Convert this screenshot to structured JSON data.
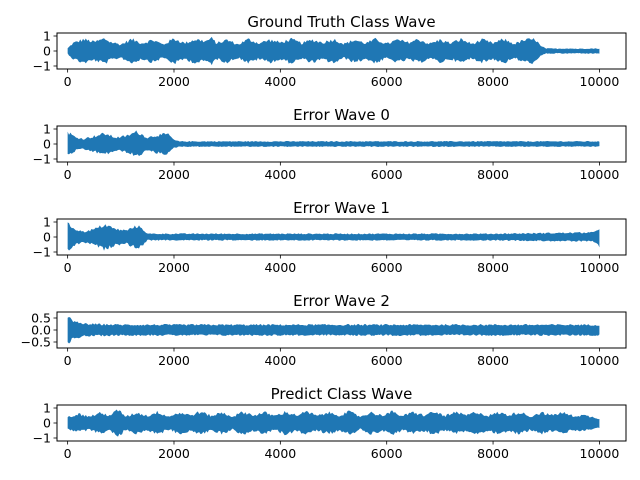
{
  "chart_data": [
    {
      "type": "line",
      "title": "Ground Truth Class Wave",
      "xlim": [
        -200,
        10500
      ],
      "ylim": [
        -1.2,
        1.2
      ],
      "xticks": [
        0,
        2000,
        4000,
        6000,
        8000,
        10000
      ],
      "yticks": [
        1,
        0,
        -1
      ],
      "ytick_labels": [
        "1",
        "0",
        "−1"
      ],
      "color": "#1f77b4",
      "envelope": {
        "x": [
          0,
          100,
          300,
          500,
          700,
          800,
          1000,
          1200,
          1400,
          1600,
          1800,
          2000,
          2200,
          2400,
          2600,
          2700,
          2800,
          3000,
          3200,
          3400,
          3600,
          3800,
          4000,
          4200,
          4400,
          4600,
          4800,
          5000,
          5200,
          5400,
          5600,
          5800,
          6000,
          6200,
          6400,
          6600,
          6800,
          7000,
          7200,
          7400,
          7600,
          7800,
          8000,
          8200,
          8400,
          8600,
          8800,
          8900,
          9000,
          9200,
          9400,
          9600,
          9800,
          10000
        ],
        "amp": [
          0.2,
          0.6,
          0.9,
          0.7,
          0.95,
          0.7,
          0.5,
          0.9,
          0.6,
          0.85,
          0.5,
          0.95,
          0.6,
          0.9,
          0.75,
          1.0,
          0.6,
          0.85,
          0.5,
          0.9,
          0.6,
          0.85,
          0.65,
          0.9,
          0.6,
          0.85,
          0.65,
          0.9,
          0.55,
          0.85,
          0.6,
          0.9,
          0.55,
          0.85,
          0.65,
          0.9,
          0.55,
          0.85,
          0.6,
          0.9,
          0.55,
          0.85,
          0.6,
          0.9,
          0.55,
          0.85,
          0.9,
          0.35,
          0.2,
          0.18,
          0.2,
          0.17,
          0.2,
          0.18
        ]
      }
    },
    {
      "type": "line",
      "title": "Error Wave 0",
      "xlim": [
        -200,
        10500
      ],
      "ylim": [
        -1.2,
        1.2
      ],
      "xticks": [
        0,
        2000,
        4000,
        6000,
        8000,
        10000
      ],
      "yticks": [
        1,
        0,
        -1
      ],
      "ytick_labels": [
        "1",
        "0",
        "−1"
      ],
      "color": "#1f77b4",
      "envelope": {
        "x": [
          0,
          50,
          150,
          300,
          500,
          700,
          900,
          1100,
          1300,
          1500,
          1700,
          1900,
          2000,
          2100,
          3000,
          4000,
          5000,
          6000,
          7000,
          8000,
          9000,
          10000
        ],
        "amp": [
          0.9,
          0.8,
          0.5,
          0.4,
          0.6,
          0.8,
          0.5,
          0.6,
          0.95,
          0.5,
          0.7,
          0.75,
          0.3,
          0.2,
          0.2,
          0.2,
          0.2,
          0.2,
          0.2,
          0.2,
          0.2,
          0.2
        ]
      }
    },
    {
      "type": "line",
      "title": "Error Wave 1",
      "xlim": [
        -200,
        10500
      ],
      "ylim": [
        -1.2,
        1.2
      ],
      "xticks": [
        0,
        2000,
        4000,
        6000,
        8000,
        10000
      ],
      "yticks": [
        1,
        0,
        -1
      ],
      "ytick_labels": [
        "1",
        "0",
        "−1"
      ],
      "color": "#1f77b4",
      "envelope": {
        "x": [
          0,
          40,
          150,
          300,
          500,
          700,
          900,
          1100,
          1300,
          1400,
          1500,
          2000,
          3000,
          4000,
          5000,
          6000,
          7000,
          8000,
          9000,
          9900,
          10000
        ],
        "amp": [
          1.0,
          0.9,
          0.6,
          0.4,
          0.6,
          0.95,
          0.6,
          0.5,
          0.85,
          0.7,
          0.25,
          0.25,
          0.25,
          0.25,
          0.25,
          0.25,
          0.25,
          0.25,
          0.3,
          0.35,
          0.7
        ]
      }
    },
    {
      "type": "line",
      "title": "Error Wave 2",
      "xlim": [
        -200,
        10500
      ],
      "ylim": [
        -0.75,
        0.75
      ],
      "xticks": [
        0,
        2000,
        4000,
        6000,
        8000,
        10000
      ],
      "yticks": [
        0.5,
        0.0,
        -0.5
      ],
      "ytick_labels": [
        "0.5",
        "0.0",
        "−0.5"
      ],
      "color": "#1f77b4",
      "envelope": {
        "x": [
          0,
          30,
          100,
          300,
          500,
          1000,
          2000,
          3000,
          4000,
          5000,
          6000,
          7000,
          8000,
          9000,
          10000
        ],
        "amp": [
          0.7,
          0.6,
          0.4,
          0.3,
          0.28,
          0.25,
          0.25,
          0.25,
          0.25,
          0.25,
          0.25,
          0.25,
          0.25,
          0.25,
          0.25
        ]
      }
    },
    {
      "type": "line",
      "title": "Predict Class Wave",
      "xlim": [
        -200,
        10500
      ],
      "ylim": [
        -1.2,
        1.2
      ],
      "xticks": [
        0,
        2000,
        4000,
        6000,
        8000,
        10000
      ],
      "yticks": [
        1,
        0,
        -1
      ],
      "ytick_labels": [
        "1",
        "0",
        "−1"
      ],
      "color": "#1f77b4",
      "envelope": {
        "x": [
          0,
          200,
          400,
          600,
          800,
          950,
          1100,
          1300,
          1500,
          1700,
          1900,
          2100,
          2300,
          2500,
          2700,
          2900,
          3100,
          3300,
          3500,
          3700,
          3900,
          4100,
          4300,
          4500,
          4700,
          4900,
          5100,
          5300,
          5500,
          5700,
          5900,
          6100,
          6300,
          6500,
          6700,
          6900,
          7100,
          7300,
          7500,
          7700,
          7900,
          8100,
          8300,
          8500,
          8700,
          8900,
          9100,
          9300,
          9500,
          9700,
          10000
        ],
        "amp": [
          0.45,
          0.7,
          0.5,
          0.75,
          0.6,
          1.0,
          0.5,
          0.8,
          0.55,
          0.85,
          0.5,
          0.8,
          0.6,
          0.85,
          0.55,
          0.8,
          0.5,
          0.85,
          0.6,
          0.8,
          0.55,
          0.85,
          0.6,
          0.85,
          0.55,
          0.8,
          0.6,
          0.85,
          0.5,
          0.8,
          0.6,
          0.85,
          0.55,
          0.8,
          0.6,
          0.85,
          0.55,
          0.8,
          0.6,
          0.85,
          0.55,
          0.8,
          0.6,
          0.85,
          0.5,
          0.8,
          0.6,
          0.8,
          0.55,
          0.6,
          0.35
        ]
      }
    }
  ]
}
